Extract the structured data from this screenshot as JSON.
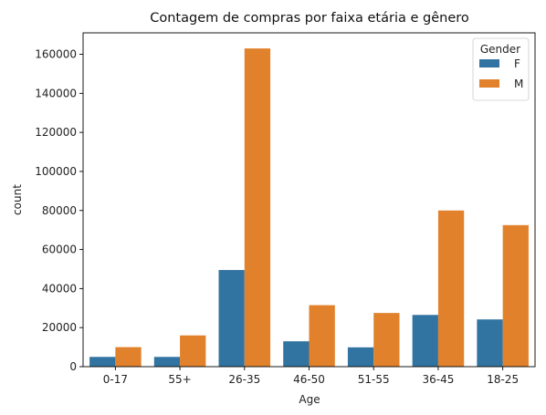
{
  "chart_data": {
    "type": "bar",
    "title": "Contagem de compras por faixa etária e gênero",
    "xlabel": "Age",
    "ylabel": "count",
    "categories": [
      "0-17",
      "55+",
      "26-35",
      "46-50",
      "51-55",
      "36-45",
      "18-25"
    ],
    "series": [
      {
        "name": "F",
        "color": "#3274a1",
        "values": [
          5000,
          5000,
          49500,
          13000,
          9900,
          26500,
          24200
        ]
      },
      {
        "name": "M",
        "color": "#e1812c",
        "values": [
          10000,
          16000,
          163000,
          31500,
          27500,
          80000,
          72500
        ]
      }
    ],
    "ylim": [
      0,
      171000
    ],
    "yticks": [
      0,
      20000,
      40000,
      60000,
      80000,
      100000,
      120000,
      140000,
      160000
    ],
    "legend": {
      "title": "Gender",
      "placement": "top-right"
    },
    "grid": false
  }
}
